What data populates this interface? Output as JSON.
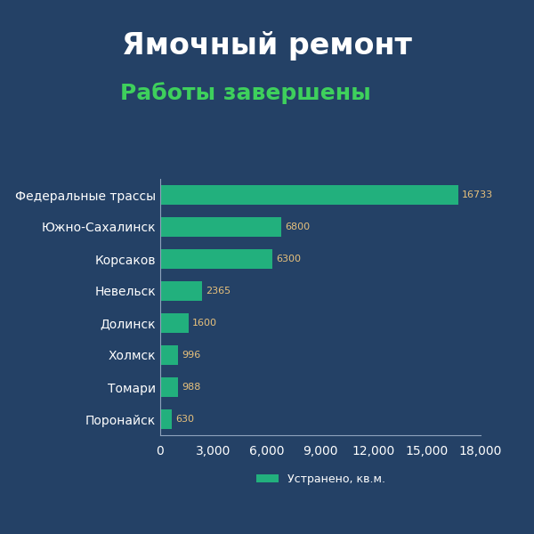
{
  "chart_data": {
    "type": "bar",
    "orientation": "horizontal",
    "title": "Ямочный ремонт",
    "subtitle": "Работы завершены",
    "categories": [
      "Федеральные трассы",
      "Южно-Сахалинск",
      "Корсаков",
      "Невельск",
      "Долинск",
      "Холмск",
      "Томари",
      "Поронайск"
    ],
    "series": [
      {
        "name": "Устранено, кв.м.",
        "color": "#22b07d",
        "values": [
          16733,
          6800,
          6300,
          2365,
          1600,
          996,
          988,
          630
        ]
      }
    ],
    "xlim": [
      0,
      18000
    ],
    "xticks": [
      0,
      {
        "value": 3000,
        "label": "3,000"
      },
      {
        "value": 6000,
        "label": "6,000"
      },
      {
        "value": 9000,
        "label": "9,000"
      },
      {
        "value": 12000,
        "label": "12,000"
      },
      {
        "value": 15000,
        "label": "15,000"
      },
      {
        "value": 18000,
        "label": "18,000"
      }
    ],
    "data_labels": true,
    "legend": "bottom",
    "grid": false
  }
}
